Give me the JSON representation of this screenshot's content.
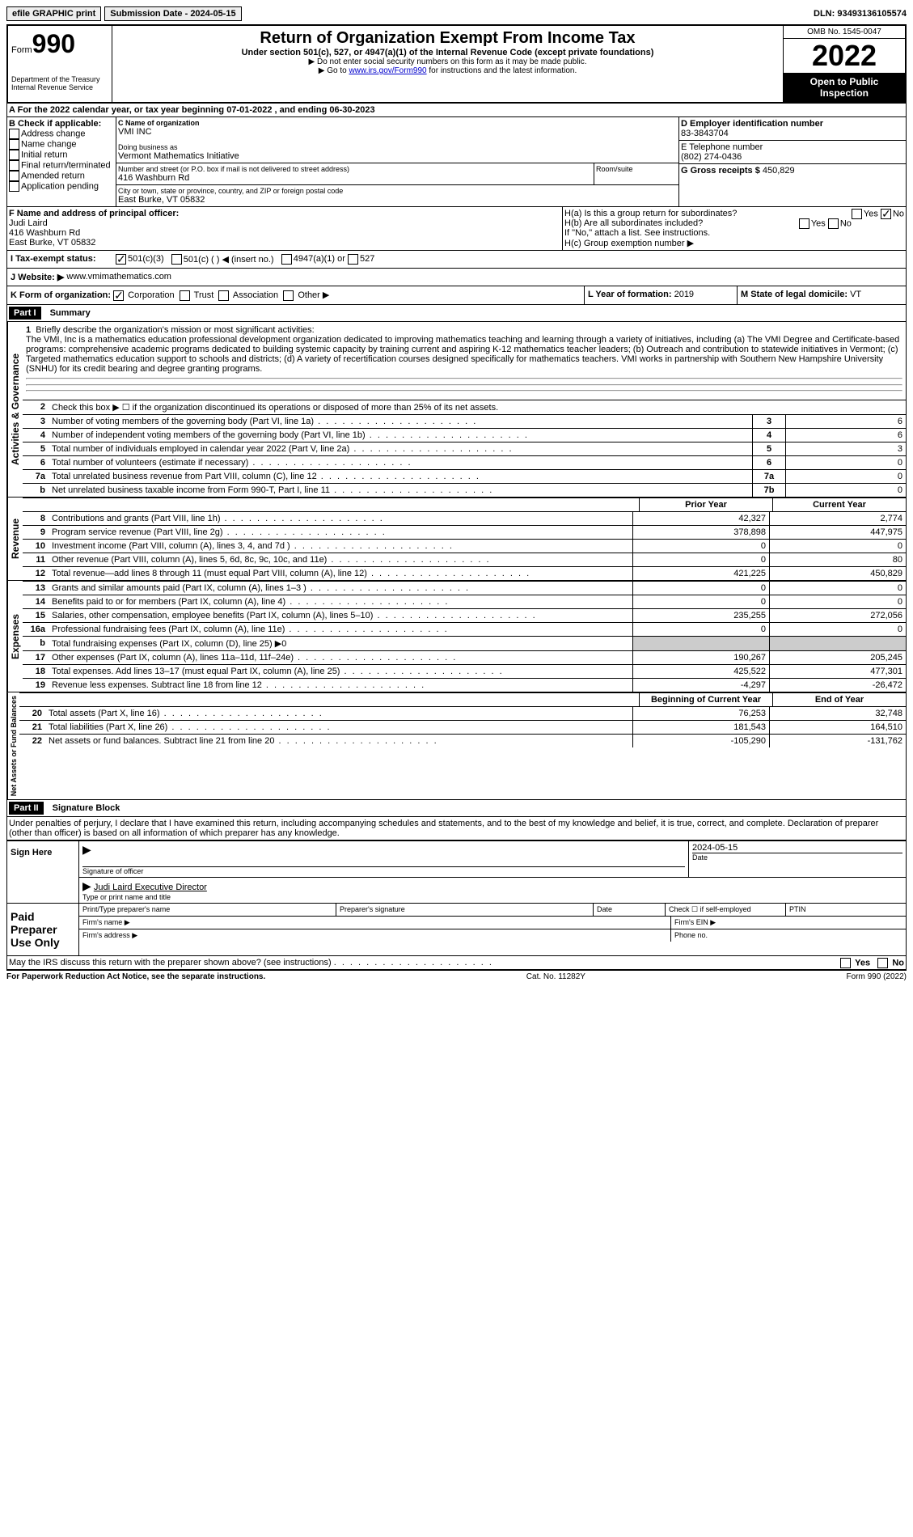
{
  "top": {
    "efile": "efile GRAPHIC print",
    "submission_label": "Submission Date - 2024-05-15",
    "dln": "DLN: 93493136105574"
  },
  "header": {
    "form_word": "Form",
    "form_num": "990",
    "dept": "Department of the Treasury",
    "irs": "Internal Revenue Service",
    "title": "Return of Organization Exempt From Income Tax",
    "sub": "Under section 501(c), 527, or 4947(a)(1) of the Internal Revenue Code (except private foundations)",
    "instr1": "▶ Do not enter social security numbers on this form as it may be made public.",
    "instr2_prefix": "▶ Go to ",
    "instr2_link": "www.irs.gov/Form990",
    "instr2_suffix": " for instructions and the latest information.",
    "omb": "OMB No. 1545-0047",
    "year": "2022",
    "open": "Open to Public Inspection"
  },
  "periodA": "For the 2022 calendar year, or tax year beginning 07-01-2022   , and ending 06-30-2023",
  "sectionB": {
    "label": "B Check if applicable:",
    "items": [
      "Address change",
      "Name change",
      "Initial return",
      "Final return/terminated",
      "Amended return",
      "Application pending"
    ]
  },
  "sectionC": {
    "name_label": "C Name of organization",
    "name": "VMI INC",
    "dba_label": "Doing business as",
    "dba": "Vermont Mathematics Initiative",
    "street_label": "Number and street (or P.O. box if mail is not delivered to street address)",
    "street": "416 Washburn Rd",
    "room_label": "Room/suite",
    "city_label": "City or town, state or province, country, and ZIP or foreign postal code",
    "city": "East Burke, VT  05832"
  },
  "sectionD": {
    "label": "D Employer identification number",
    "val": "83-3843704"
  },
  "sectionE": {
    "label": "E Telephone number",
    "val": "(802) 274-0436"
  },
  "sectionG": {
    "label": "G Gross receipts $",
    "val": "450,829"
  },
  "sectionF": {
    "label": "F  Name and address of principal officer:",
    "name": "Judi Laird",
    "addr1": "416 Washburn Rd",
    "addr2": "East Burke, VT  05832"
  },
  "sectionH": {
    "a": "H(a)  Is this a group return for subordinates?",
    "b": "H(b)  Are all subordinates included?",
    "note": "If \"No,\" attach a list. See instructions.",
    "c": "H(c)  Group exemption number ▶",
    "yes": "Yes",
    "no": "No"
  },
  "sectionI": {
    "label": "I  Tax-exempt status:",
    "opt1": "501(c)(3)",
    "opt2": "501(c) (  ) ◀ (insert no.)",
    "opt3": "4947(a)(1) or",
    "opt4": "527"
  },
  "sectionJ": {
    "label": "J  Website: ▶",
    "val": "www.vmimathematics.com"
  },
  "sectionK": {
    "label": "K Form of organization:",
    "opts": [
      "Corporation",
      "Trust",
      "Association",
      "Other ▶"
    ]
  },
  "sectionL": {
    "label": "L Year of formation:",
    "val": "2019"
  },
  "sectionM": {
    "label": "M State of legal domicile:",
    "val": "VT"
  },
  "part1": {
    "header": "Part I",
    "title": "Summary",
    "side_gov": "Activities & Governance",
    "side_rev": "Revenue",
    "side_exp": "Expenses",
    "side_net": "Net Assets or Fund Balances",
    "q1_label": "Briefly describe the organization's mission or most significant activities:",
    "q1_text": "The VMI, Inc is a mathematics education professional development organization dedicated to improving mathematics teaching and learning through a variety of initiatives, including (a) The VMI Degree and Certificate-based programs: comprehensive academic programs dedicated to building systemic capacity by training current and aspiring K-12 mathematics teacher leaders; (b) Outreach and contribution to statewide initiatives in Vermont; (c) Targeted mathematics education support to schools and districts; (d) A variety of recertification courses designed specifically for mathematics teachers. VMI works in partnership with Southern New Hampshire University (SNHU) for its credit bearing and degree granting programs.",
    "q2": "Check this box ▶ ☐ if the organization discontinued its operations or disposed of more than 25% of its net assets.",
    "rows_gov": [
      {
        "n": "3",
        "t": "Number of voting members of the governing body (Part VI, line 1a)",
        "box": "3",
        "v": "6"
      },
      {
        "n": "4",
        "t": "Number of independent voting members of the governing body (Part VI, line 1b)",
        "box": "4",
        "v": "6"
      },
      {
        "n": "5",
        "t": "Total number of individuals employed in calendar year 2022 (Part V, line 2a)",
        "box": "5",
        "v": "3"
      },
      {
        "n": "6",
        "t": "Total number of volunteers (estimate if necessary)",
        "box": "6",
        "v": "0"
      },
      {
        "n": "7a",
        "t": "Total unrelated business revenue from Part VIII, column (C), line 12",
        "box": "7a",
        "v": "0"
      },
      {
        "n": "b",
        "t": "Net unrelated business taxable income from Form 990-T, Part I, line 11",
        "box": "7b",
        "v": "0"
      }
    ],
    "col_prior": "Prior Year",
    "col_current": "Current Year",
    "rows_rev": [
      {
        "n": "8",
        "t": "Contributions and grants (Part VIII, line 1h)",
        "p": "42,327",
        "c": "2,774"
      },
      {
        "n": "9",
        "t": "Program service revenue (Part VIII, line 2g)",
        "p": "378,898",
        "c": "447,975"
      },
      {
        "n": "10",
        "t": "Investment income (Part VIII, column (A), lines 3, 4, and 7d )",
        "p": "0",
        "c": "0"
      },
      {
        "n": "11",
        "t": "Other revenue (Part VIII, column (A), lines 5, 6d, 8c, 9c, 10c, and 11e)",
        "p": "0",
        "c": "80"
      },
      {
        "n": "12",
        "t": "Total revenue—add lines 8 through 11 (must equal Part VIII, column (A), line 12)",
        "p": "421,225",
        "c": "450,829"
      }
    ],
    "rows_exp": [
      {
        "n": "13",
        "t": "Grants and similar amounts paid (Part IX, column (A), lines 1–3 )",
        "p": "0",
        "c": "0"
      },
      {
        "n": "14",
        "t": "Benefits paid to or for members (Part IX, column (A), line 4)",
        "p": "0",
        "c": "0"
      },
      {
        "n": "15",
        "t": "Salaries, other compensation, employee benefits (Part IX, column (A), lines 5–10)",
        "p": "235,255",
        "c": "272,056"
      },
      {
        "n": "16a",
        "t": "Professional fundraising fees (Part IX, column (A), line 11e)",
        "p": "0",
        "c": "0"
      },
      {
        "n": "b",
        "t": "Total fundraising expenses (Part IX, column (D), line 25) ▶0",
        "p": "",
        "c": "",
        "shaded": true
      },
      {
        "n": "17",
        "t": "Other expenses (Part IX, column (A), lines 11a–11d, 11f–24e)",
        "p": "190,267",
        "c": "205,245"
      },
      {
        "n": "18",
        "t": "Total expenses. Add lines 13–17 (must equal Part IX, column (A), line 25)",
        "p": "425,522",
        "c": "477,301"
      },
      {
        "n": "19",
        "t": "Revenue less expenses. Subtract line 18 from line 12",
        "p": "-4,297",
        "c": "-26,472"
      }
    ],
    "col_begin": "Beginning of Current Year",
    "col_end": "End of Year",
    "rows_net": [
      {
        "n": "20",
        "t": "Total assets (Part X, line 16)",
        "p": "76,253",
        "c": "32,748"
      },
      {
        "n": "21",
        "t": "Total liabilities (Part X, line 26)",
        "p": "181,543",
        "c": "164,510"
      },
      {
        "n": "22",
        "t": "Net assets or fund balances. Subtract line 21 from line 20",
        "p": "-105,290",
        "c": "-131,762"
      }
    ]
  },
  "part2": {
    "header": "Part II",
    "title": "Signature Block",
    "decl": "Under penalties of perjury, I declare that I have examined this return, including accompanying schedules and statements, and to the best of my knowledge and belief, it is true, correct, and complete. Declaration of preparer (other than officer) is based on all information of which preparer has any knowledge.",
    "sign_here": "Sign Here",
    "sig_officer": "Signature of officer",
    "sig_date": "2024-05-15",
    "date_label": "Date",
    "officer_name": "Judi Laird  Executive Director",
    "type_name": "Type or print name and title",
    "paid": "Paid Preparer Use Only",
    "prep_name": "Print/Type preparer's name",
    "prep_sig": "Preparer's signature",
    "check_self": "Check ☐ if self-employed",
    "ptin": "PTIN",
    "firm_name": "Firm's name   ▶",
    "firm_ein": "Firm's EIN ▶",
    "firm_addr": "Firm's address ▶",
    "phone": "Phone no.",
    "discuss": "May the IRS discuss this return with the preparer shown above? (see instructions)"
  },
  "footer": {
    "paperwork": "For Paperwork Reduction Act Notice, see the separate instructions.",
    "cat": "Cat. No. 11282Y",
    "form": "Form 990 (2022)"
  }
}
